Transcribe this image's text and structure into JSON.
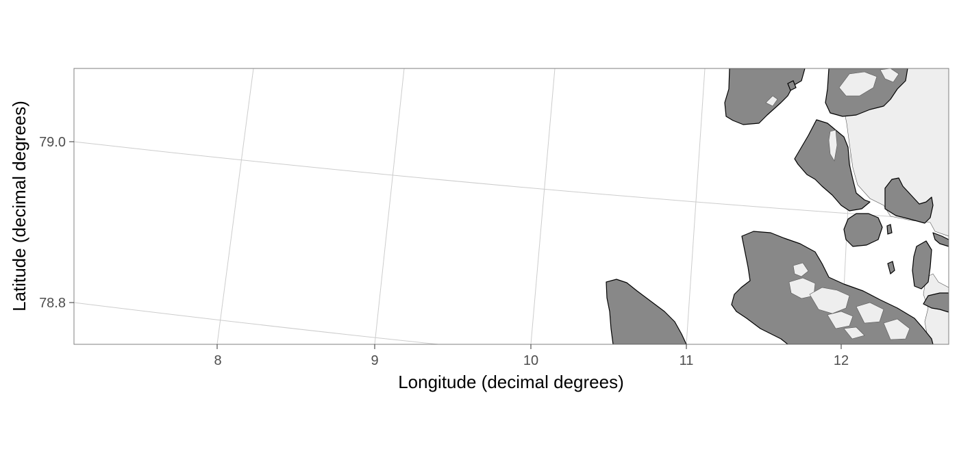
{
  "map": {
    "x_axis_title": "Longitude (decimal degrees)",
    "y_axis_title": "Latitude (decimal degrees)",
    "x_tick_labels": [
      "8",
      "9",
      "10",
      "11",
      "12"
    ],
    "y_tick_labels": [
      "79.0",
      "78.8"
    ],
    "grid": true,
    "colors": {
      "sea": "#ffffff",
      "land": "#888888",
      "glacier": "#eeeeee",
      "coastline": "#000000",
      "graticule": "#cccccc",
      "panel_border": "#7f7f7f"
    }
  }
}
